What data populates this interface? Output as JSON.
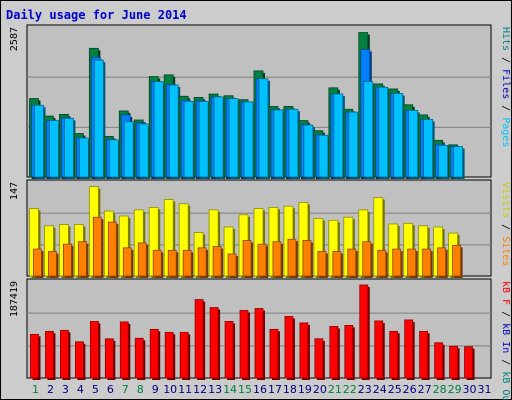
{
  "title": "Daily usage for June 2014",
  "colors": {
    "background": "#cccccc",
    "plot_bg": "#c0c0c0",
    "hits": "#008040",
    "files": "#0080ff",
    "pages": "#00c0ff",
    "visits": "#ffff00",
    "sites": "#ff8000",
    "kbin": "#0000c0",
    "kbout": "#008080",
    "kbf": "#ff0000",
    "title": "#0000cc"
  },
  "chart_data": [
    {
      "type": "bar",
      "panel": "hits-files-pages",
      "ymax_label": "2587",
      "ymax": 2587,
      "legend": [
        {
          "text": "Hits",
          "color": "#008080"
        },
        {
          "text": " / ",
          "color": "#000000"
        },
        {
          "text": "Files",
          "color": "#0000c0"
        },
        {
          "text": " / ",
          "color": "#000000"
        },
        {
          "text": "Pages",
          "color": "#00c0ff"
        }
      ],
      "series": [
        {
          "name": "Hits",
          "values": [
            1390,
            1080,
            1110,
            770,
            2280,
            720,
            1170,
            1010,
            1780,
            1810,
            1430,
            1410,
            1470,
            1440,
            1370,
            1880,
            1250,
            1250,
            1000,
            820,
            1580,
            1200,
            2560,
            1650,
            1560,
            1280,
            1100,
            650,
            570,
            0
          ]
        },
        {
          "name": "Files",
          "values": [
            1270,
            1000,
            1050,
            700,
            2120,
            670,
            1100,
            960,
            1690,
            1640,
            1360,
            1350,
            1420,
            1390,
            1330,
            1740,
            1190,
            1200,
            930,
            750,
            1470,
            1150,
            2260,
            1590,
            1480,
            1180,
            1020,
            580,
            540,
            0
          ]
        },
        {
          "name": "Pages",
          "values": [
            1270,
            1000,
            1040,
            690,
            2070,
            660,
            980,
            940,
            1690,
            1630,
            1340,
            1340,
            1420,
            1390,
            1330,
            1740,
            1190,
            1200,
            920,
            740,
            1470,
            1150,
            1690,
            1590,
            1480,
            1180,
            1020,
            560,
            540,
            0
          ]
        }
      ]
    },
    {
      "type": "bar",
      "panel": "visits-sites",
      "ymax_label": "147",
      "ymax": 147,
      "legend": [
        {
          "text": "Visits",
          "color": "#cccc00"
        },
        {
          "text": " / ",
          "color": "#000000"
        },
        {
          "text": "Sites",
          "color": "#ff8000"
        }
      ],
      "series": [
        {
          "name": "Visits",
          "values": [
            110,
            82,
            84,
            84,
            146,
            106,
            98,
            108,
            112,
            125,
            118,
            71,
            108,
            80,
            100,
            110,
            112,
            114,
            120,
            94,
            91,
            96,
            108,
            128,
            85,
            86,
            82,
            80,
            70,
            0
          ]
        },
        {
          "name": "Sites",
          "values": [
            44,
            40,
            52,
            56,
            96,
            88,
            46,
            54,
            42,
            42,
            42,
            46,
            48,
            36,
            58,
            52,
            56,
            60,
            58,
            40,
            40,
            44,
            56,
            42,
            44,
            44,
            44,
            46,
            50,
            0
          ]
        }
      ]
    },
    {
      "type": "bar",
      "panel": "kbf-kbin-kbout",
      "ymax_label": "187419",
      "ymax": 187419,
      "legend": [
        {
          "text": "kB F",
          "color": "#ff0000"
        },
        {
          "text": " / ",
          "color": "#000000"
        },
        {
          "text": "kB In",
          "color": "#0000c0"
        },
        {
          "text": " / ",
          "color": "#000000"
        },
        {
          "text": "kB Out",
          "color": "#008080"
        }
      ],
      "series": [
        {
          "name": "kB F",
          "values": [
            88000,
            94000,
            96000,
            73000,
            114000,
            79000,
            113000,
            80000,
            98000,
            92000,
            92000,
            158000,
            142000,
            114000,
            136000,
            140000,
            98000,
            124000,
            111000,
            79000,
            104000,
            106000,
            187419,
            115000,
            94000,
            117000,
            94000,
            71000,
            64000,
            63000
          ]
        }
      ]
    }
  ],
  "x_axis": {
    "days": [
      "1",
      "2",
      "3",
      "4",
      "5",
      "6",
      "7",
      "8",
      "9",
      "10",
      "11",
      "12",
      "13",
      "14",
      "15",
      "16",
      "17",
      "18",
      "19",
      "20",
      "21",
      "22",
      "23",
      "24",
      "25",
      "26",
      "27",
      "28",
      "29",
      "30",
      "31"
    ],
    "weekend_days": [
      "1",
      "7",
      "8",
      "14",
      "15",
      "21",
      "22",
      "28",
      "29"
    ],
    "weekday_color": "#000080",
    "weekend_color": "#008040"
  }
}
